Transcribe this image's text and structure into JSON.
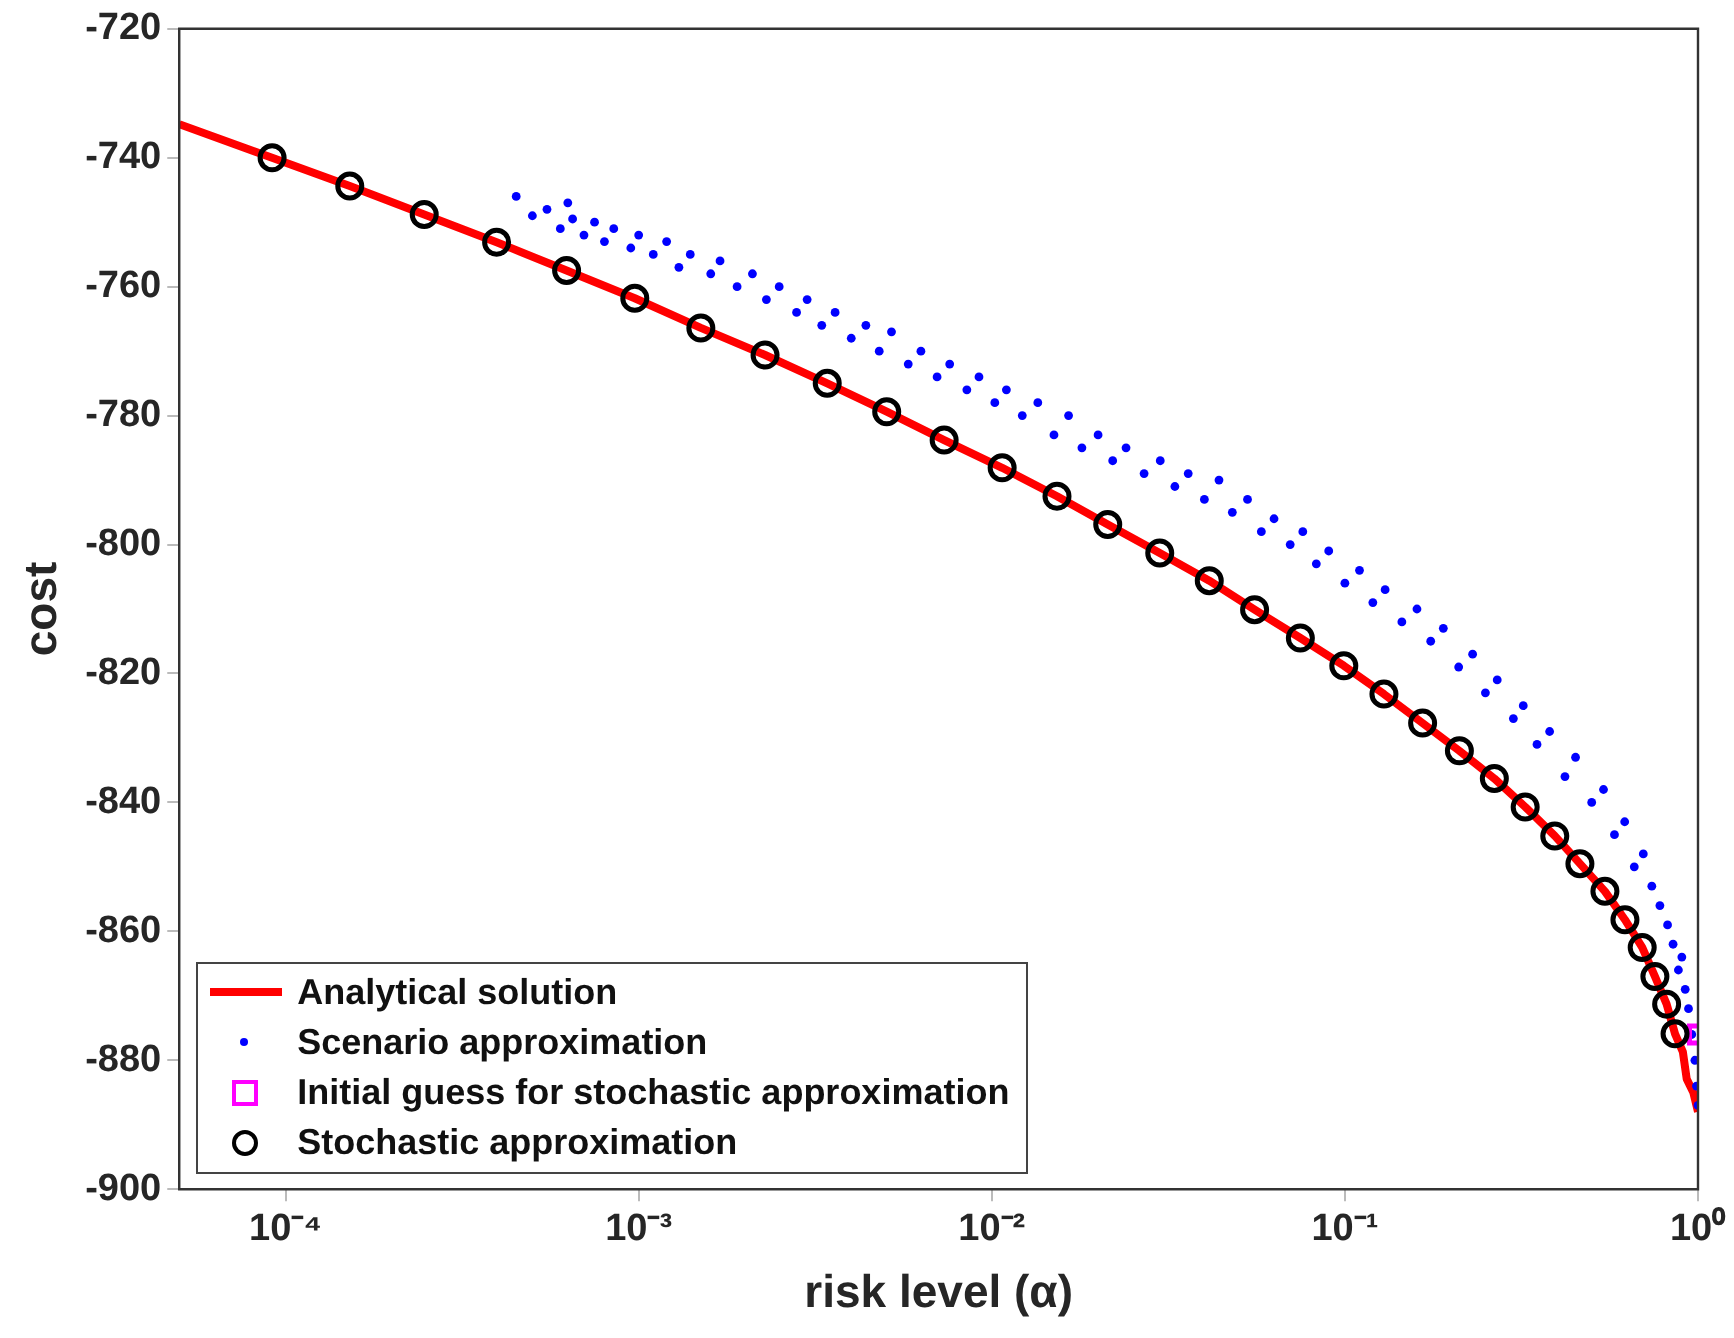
{
  "chart_data": {
    "type": "scatter",
    "xlabel": "risk level (α)",
    "ylabel": "cost",
    "log": "x",
    "grid": false,
    "legend": "bottom left",
    "xlim": [
      5e-05,
      1
    ],
    "ylim": [
      -900,
      -720
    ],
    "xticks": [
      {
        "value": 0.0001,
        "label": "10⁻⁴"
      },
      {
        "value": 0.001,
        "label": "10⁻³"
      },
      {
        "value": 0.01,
        "label": "10⁻²"
      },
      {
        "value": 0.1,
        "label": "10⁻¹"
      },
      {
        "value": 1,
        "label": "10⁰"
      }
    ],
    "yticks": [
      -900,
      -880,
      -860,
      -840,
      -820,
      -800,
      -780,
      -760,
      -740,
      -720
    ],
    "series": [
      {
        "name": "Analytical solution",
        "type": "line",
        "color": "#ff0000",
        "marker": "none",
        "x": [
          5e-05,
          9.16e-05,
          0.000152,
          0.000247,
          0.000396,
          0.000625,
          0.000975,
          0.0015,
          0.00228,
          0.00342,
          0.00504,
          0.00733,
          0.0107,
          0.0153,
          0.0213,
          0.0299,
          0.0413,
          0.0555,
          0.0748,
          0.0993,
          0.129,
          0.166,
          0.211,
          0.265,
          0.324,
          0.393,
          0.463,
          0.545,
          0.621,
          0.695,
          0.755,
          0.815,
          0.861,
          0.906,
          0.929,
          0.97,
          1
        ],
        "values": [
          -734.8,
          -740,
          -744.4,
          -748.8,
          -753.1,
          -757.5,
          -761.8,
          -766.4,
          -770.6,
          -775,
          -779.4,
          -783.8,
          -788.1,
          -792.5,
          -796.9,
          -801.3,
          -805.6,
          -810.1,
          -814.5,
          -818.8,
          -823.2,
          -827.7,
          -832,
          -836.3,
          -840.7,
          -845.2,
          -849.5,
          -853.8,
          -858.2,
          -862.5,
          -867,
          -871.3,
          -875.9,
          -878.7,
          -882.9,
          -885,
          -888
        ]
      },
      {
        "name": "Scenario approximation",
        "type": "scatter",
        "color": "#0000ff",
        "marker": "circle",
        "x": [
          0.00045,
          0.0005,
          0.00055,
          0.0006,
          0.00063,
          0.00065,
          0.0007,
          0.00075,
          0.0008,
          0.00085,
          0.00095,
          0.001,
          0.0011,
          0.0012,
          0.0013,
          0.0014,
          0.0016,
          0.0017,
          0.0019,
          0.0021,
          0.0023,
          0.0025,
          0.0028,
          0.003,
          0.0033,
          0.0036,
          0.004,
          0.0044,
          0.0048,
          0.0052,
          0.0058,
          0.0063,
          0.007,
          0.0076,
          0.0085,
          0.0092,
          0.0102,
          0.011,
          0.0122,
          0.0135,
          0.015,
          0.0165,
          0.018,
          0.02,
          0.022,
          0.024,
          0.027,
          0.03,
          0.033,
          0.036,
          0.04,
          0.044,
          0.048,
          0.053,
          0.058,
          0.063,
          0.07,
          0.076,
          0.083,
          0.09,
          0.1,
          0.11,
          0.12,
          0.13,
          0.145,
          0.16,
          0.175,
          0.19,
          0.21,
          0.23,
          0.25,
          0.27,
          0.3,
          0.32,
          0.35,
          0.38,
          0.42,
          0.45,
          0.5,
          0.54,
          0.58,
          0.62,
          0.66,
          0.7,
          0.74,
          0.78,
          0.82,
          0.85,
          0.88,
          0.9,
          0.92,
          0.94,
          0.96,
          0.98,
          0.99,
          1
        ],
        "values": [
          -746,
          -749,
          -748,
          -751,
          -747,
          -749.5,
          -752,
          -750,
          -753,
          -751,
          -754,
          -752,
          -755,
          -753,
          -757,
          -755,
          -758,
          -756,
          -760,
          -758,
          -762,
          -760,
          -764,
          -762,
          -766,
          -764,
          -768,
          -766,
          -770,
          -767,
          -772,
          -770,
          -774,
          -772,
          -776,
          -774,
          -778,
          -776,
          -780,
          -778,
          -783,
          -780,
          -785,
          -783,
          -787,
          -785,
          -789,
          -787,
          -791,
          -789,
          -793,
          -790,
          -795,
          -793,
          -798,
          -796,
          -800,
          -798,
          -803,
          -801,
          -806,
          -804,
          -809,
          -807,
          -812,
          -810,
          -815,
          -813,
          -819,
          -817,
          -823,
          -821,
          -827,
          -825,
          -831,
          -829,
          -836,
          -833,
          -840,
          -838,
          -845,
          -843,
          -850,
          -848,
          -853,
          -856,
          -859,
          -862,
          -866,
          -864,
          -869,
          -872,
          -876,
          -880,
          -884,
          -887
        ]
      },
      {
        "name": "Initial guess for stochastic approximation",
        "type": "scatter",
        "color": "#ff00ff",
        "marker": "square",
        "x": [
          1
        ],
        "values": [
          -876
        ]
      },
      {
        "name": "Stochastic approximation",
        "type": "scatter",
        "color": "#000000",
        "marker": "circle",
        "x": [
          9.16e-05,
          0.000152,
          0.000247,
          0.000396,
          0.000625,
          0.000975,
          0.0015,
          0.00228,
          0.00342,
          0.00504,
          0.00733,
          0.0107,
          0.0153,
          0.0213,
          0.0299,
          0.0413,
          0.0555,
          0.0748,
          0.0993,
          0.129,
          0.166,
          0.211,
          0.265,
          0.324,
          0.393,
          0.463,
          0.545,
          0.621,
          0.695,
          0.755,
          0.815,
          0.861
        ],
        "values": [
          -740,
          -744.4,
          -748.8,
          -753.1,
          -757.5,
          -761.8,
          -766.4,
          -770.6,
          -775,
          -779.4,
          -783.8,
          -788.1,
          -792.5,
          -796.9,
          -801.3,
          -805.6,
          -810.1,
          -814.5,
          -818.8,
          -823.2,
          -827.7,
          -832,
          -836.3,
          -840.7,
          -845.2,
          -849.5,
          -853.8,
          -858.2,
          -862.5,
          -867,
          -871.3,
          -875.9
        ]
      }
    ]
  }
}
